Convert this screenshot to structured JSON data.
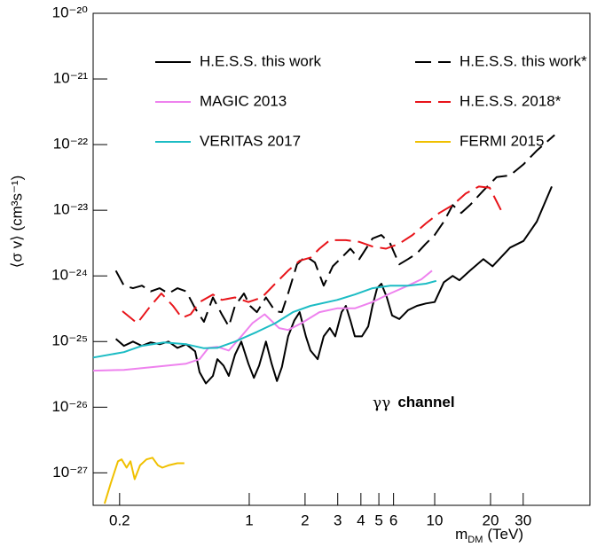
{
  "chart_data": {
    "type": "line",
    "x_label": {
      "main": "m",
      "subscript": "DM",
      "unit": "(TeV)"
    },
    "y_label": "⟨σ v⟩ (cm³s⁻¹)",
    "annotation": {
      "symbol": "γγ",
      "text": "channel"
    },
    "xscale": "log",
    "yscale": "log",
    "xlim": [
      0.144,
      68.7
    ],
    "ylim": [
      3.2e-28,
      1e-20
    ],
    "xticks": [
      0.2,
      1,
      2,
      3,
      4,
      5,
      6,
      10,
      20,
      30
    ],
    "yticks": [
      {
        "value": 1e-27,
        "label": "10⁻²⁷"
      },
      {
        "value": 1e-26,
        "label": "10⁻²⁶"
      },
      {
        "value": 1e-25,
        "label": "10⁻²⁵"
      },
      {
        "value": 1e-24,
        "label": "10⁻²⁴"
      },
      {
        "value": 1e-23,
        "label": "10⁻²³"
      },
      {
        "value": 1e-22,
        "label": "10⁻²²"
      },
      {
        "value": 1e-21,
        "label": "10⁻²¹"
      },
      {
        "value": 1e-20,
        "label": "10⁻²⁰"
      }
    ],
    "series": [
      {
        "name": "H.E.S.S. this work",
        "color": "#000000",
        "dashed": false,
        "x": [
          0.191,
          0.211,
          0.236,
          0.264,
          0.294,
          0.329,
          0.367,
          0.41,
          0.457,
          0.511,
          0.54,
          0.584,
          0.637,
          0.673,
          0.727,
          0.776,
          0.838,
          0.906,
          0.99,
          1.06,
          1.13,
          1.23,
          1.32,
          1.41,
          1.5,
          1.62,
          1.75,
          1.87,
          2.02,
          2.14,
          2.34,
          2.52,
          2.72,
          2.91,
          3.15,
          3.32,
          3.51,
          3.71,
          4.05,
          4.38,
          4.62,
          4.89,
          5.16,
          5.52,
          5.89,
          6.44,
          7.18,
          8.02,
          8.96,
          10,
          11.2,
          12.5,
          13.6,
          15.5,
          18.3,
          20.5,
          25.5,
          30.1,
          35.5,
          42.8
        ],
        "values": [
          1.1e-25,
          8.6e-26,
          1e-25,
          8.6e-26,
          9.7e-26,
          9.1e-26,
          1e-25,
          8e-26,
          9.1e-26,
          7.1e-26,
          3.4e-26,
          2.3e-26,
          3e-26,
          5.4e-26,
          4.3e-26,
          3e-26,
          6.3e-26,
          1e-25,
          4.6e-26,
          2.8e-26,
          4.3e-26,
          1e-25,
          4.6e-26,
          2.5e-26,
          4.1e-26,
          1.2e-25,
          2.1e-25,
          2.8e-25,
          1.2e-25,
          7.3e-26,
          5.4e-26,
          1.2e-25,
          1.6e-25,
          1.2e-25,
          2.8e-25,
          3.5e-25,
          2.1e-25,
          1.2e-25,
          1.2e-25,
          1.7e-25,
          3.5e-25,
          6.5e-25,
          7.6e-25,
          4.7e-25,
          2.5e-25,
          2.2e-25,
          3e-25,
          3.5e-25,
          3.8e-25,
          4e-25,
          8e-25,
          1e-24,
          8.6e-25,
          1.2e-24,
          1.8e-24,
          1.4e-24,
          2.7e-24,
          3.4e-24,
          6.7e-24,
          2.3e-23
        ]
      },
      {
        "name": "H.E.S.S. this work*",
        "color": "#000000",
        "dashed": true,
        "x": [
          0.191,
          0.211,
          0.236,
          0.264,
          0.294,
          0.329,
          0.367,
          0.41,
          0.457,
          0.511,
          0.57,
          0.637,
          0.711,
          0.776,
          0.838,
          0.936,
          1.01,
          1.1,
          1.23,
          1.38,
          1.5,
          1.62,
          1.81,
          2.02,
          2.26,
          2.52,
          2.82,
          3.15,
          3.51,
          3.92,
          4.62,
          5.16,
          5.76,
          6.44,
          7.18,
          8.02,
          8.96,
          10,
          11.2,
          12.5,
          13.9,
          15.5,
          18.3,
          21.6,
          25.5,
          30.1,
          35.5,
          44.3
        ],
        "values": [
          1.2e-24,
          7.1e-25,
          6.5e-25,
          7.1e-25,
          5.8e-25,
          6.5e-25,
          5.4e-25,
          6.5e-25,
          5.8e-25,
          3.2e-25,
          2e-25,
          4.7e-25,
          2.6e-25,
          1.7e-25,
          3.5e-25,
          5.4e-25,
          3.5e-25,
          2.8e-25,
          4.7e-25,
          2.9e-25,
          2.8e-25,
          5.4e-25,
          1.5e-24,
          2e-24,
          1.6e-24,
          7.1e-25,
          1.4e-24,
          1.9e-24,
          2.6e-24,
          1.8e-24,
          3.7e-24,
          4.2e-24,
          3.1e-24,
          1.5e-24,
          1.8e-24,
          2.2e-24,
          3.1e-24,
          4.2e-24,
          6.7e-24,
          1.2e-23,
          9.1e-24,
          1.2e-23,
          2e-23,
          3.2e-23,
          3.4e-23,
          5e-23,
          8.1e-23,
          1.4e-22
        ]
      },
      {
        "name": "MAGIC 2013",
        "color": "#ee82ee",
        "dashed": false,
        "x": [
          0.144,
          0.211,
          0.329,
          0.457,
          0.54,
          0.603,
          0.673,
          0.776,
          0.906,
          1.04,
          1.21,
          1.45,
          1.62,
          1.91,
          2.39,
          2.98,
          3.71,
          4.62,
          5.76,
          7.18,
          8.48,
          9.67
        ],
        "values": [
          3.6e-26,
          3.7e-26,
          4.2e-26,
          4.6e-26,
          5.4e-26,
          8e-26,
          8.3e-26,
          7.3e-26,
          1.2e-25,
          1.9e-25,
          2.6e-25,
          1.6e-25,
          1.5e-25,
          1.9e-25,
          2.8e-25,
          3.2e-25,
          3.2e-25,
          4e-25,
          5.4e-25,
          7.1e-25,
          8.9e-25,
          1.2e-24
        ]
      },
      {
        "name": "H.E.S.S. 2018*",
        "color": "#e8141a",
        "dashed": true,
        "x": [
          0.207,
          0.249,
          0.294,
          0.336,
          0.388,
          0.433,
          0.483,
          0.54,
          0.637,
          0.711,
          0.838,
          0.99,
          1.17,
          1.38,
          1.62,
          1.87,
          2.14,
          2.39,
          2.72,
          3.32,
          3.92,
          4.62,
          5.46,
          6.44,
          7.59,
          8.96,
          10.6,
          12.5,
          14.7,
          17.3,
          19.8,
          22.9
        ],
        "values": [
          2.9e-25,
          1.9e-25,
          3.5e-25,
          5.4e-25,
          3.5e-25,
          2.3e-25,
          2.6e-25,
          4e-25,
          5.2e-25,
          4.3e-25,
          4.7e-25,
          4e-25,
          4.7e-25,
          7.6e-25,
          1.2e-24,
          1.7e-24,
          1.9e-24,
          2.6e-24,
          3.5e-24,
          3.5e-24,
          3.3e-24,
          2.8e-24,
          2.6e-24,
          3.1e-24,
          4.2e-24,
          6.3e-24,
          9.1e-24,
          1.2e-23,
          1.8e-23,
          2.3e-23,
          2.2e-23,
          9.7e-24
        ]
      },
      {
        "name": "VERITAS 2017",
        "color": "#1cbcc4",
        "dashed": false,
        "x": [
          0.144,
          0.211,
          0.264,
          0.347,
          0.457,
          0.57,
          0.673,
          0.838,
          1.1,
          1.38,
          1.72,
          2.14,
          2.98,
          3.71,
          4.62,
          5.76,
          7.18,
          8.96,
          10.2
        ],
        "values": [
          5.7e-26,
          6.9e-26,
          8.6e-26,
          9.7e-26,
          9.1e-26,
          7.9e-26,
          8e-26,
          1e-25,
          1.4e-25,
          1.9e-25,
          2.8e-25,
          3.5e-25,
          4.3e-25,
          5.2e-25,
          6.5e-25,
          7.1e-25,
          7.1e-25,
          7.6e-25,
          8.4e-25
        ]
      },
      {
        "name": "FERMI 2015",
        "color": "#f0c000",
        "dashed": false,
        "x": [
          0.166,
          0.179,
          0.196,
          0.205,
          0.218,
          0.229,
          0.241,
          0.258,
          0.279,
          0.301,
          0.322,
          0.34,
          0.367,
          0.41,
          0.447
        ],
        "values": [
          3.4e-28,
          6.9e-28,
          1.5e-27,
          1.6e-27,
          1.2e-27,
          1.5e-27,
          8e-28,
          1.3e-27,
          1.6e-27,
          1.7e-27,
          1.3e-27,
          1.2e-27,
          1.3e-27,
          1.4e-27,
          1.4e-27
        ]
      }
    ]
  }
}
